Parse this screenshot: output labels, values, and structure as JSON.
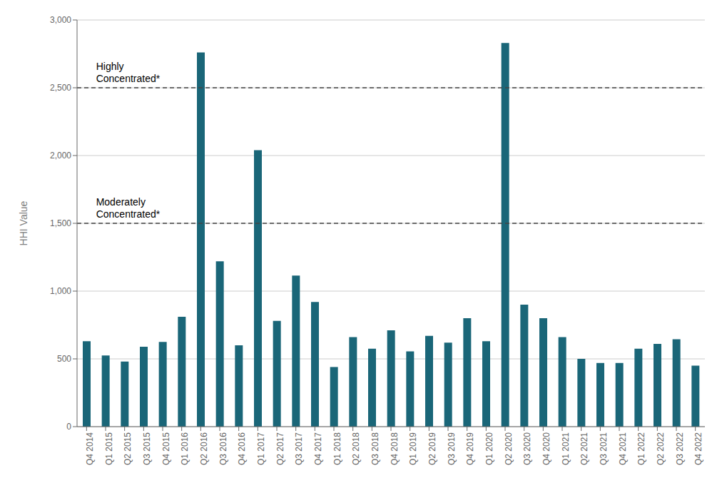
{
  "chart_data": {
    "type": "bar",
    "ylabel": "HHI Value",
    "categories": [
      "Q4 2014",
      "Q1 2015",
      "Q2 2015",
      "Q3 2015",
      "Q4 2015",
      "Q1 2016",
      "Q2 2016",
      "Q3 2016",
      "Q4 2016",
      "Q1 2017",
      "Q2 2017",
      "Q3 2017",
      "Q4 2017",
      "Q1 2018",
      "Q2 2018",
      "Q3 2018",
      "Q4 2018",
      "Q1 2019",
      "Q2 2019",
      "Q3 2019",
      "Q4 2019",
      "Q1 2020",
      "Q2 2020",
      "Q3 2020",
      "Q4 2020",
      "Q1 2021",
      "Q2 2021",
      "Q3 2021",
      "Q4 2021",
      "Q1 2022",
      "Q2 2022",
      "Q3 2022",
      "Q4 2022"
    ],
    "values": [
      630,
      525,
      480,
      590,
      625,
      810,
      2760,
      1220,
      600,
      2040,
      780,
      1115,
      920,
      440,
      660,
      575,
      710,
      555,
      670,
      620,
      800,
      630,
      2830,
      900,
      800,
      660,
      500,
      470,
      470,
      575,
      610,
      645,
      450
    ],
    "color": "#1a6678",
    "ylim": [
      0,
      3000
    ],
    "yticks": [
      0,
      500,
      {
        "value": 1000,
        "label": "1,000"
      },
      {
        "value": 1500,
        "label": "1,500"
      },
      {
        "value": 2000,
        "label": "2,000"
      },
      {
        "value": 2500,
        "label": "2,500"
      },
      {
        "value": 3000,
        "label": "3,000"
      }
    ],
    "grid": true,
    "reference_lines": [
      {
        "value": 2500,
        "label": "Highly\nConcentrated*",
        "color": "#444444",
        "line_style": "dashed"
      },
      {
        "value": 1500,
        "label": "Moderately\nConcentrated*",
        "color": "#444444",
        "line_style": "dashed"
      }
    ]
  }
}
